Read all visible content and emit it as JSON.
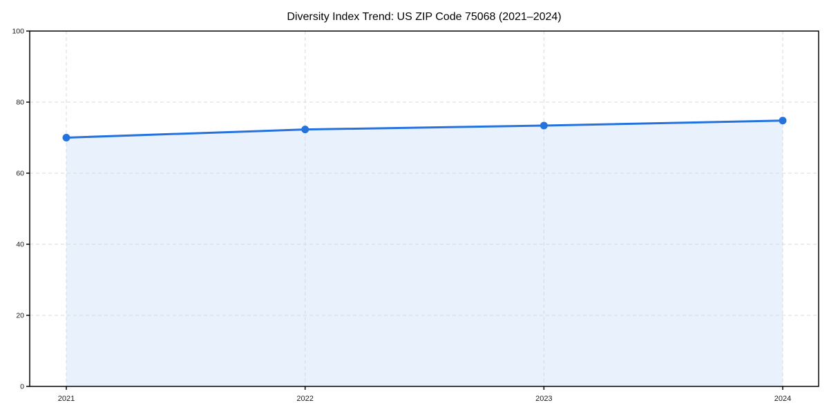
{
  "chart_data": {
    "type": "area",
    "title": "Diversity Index Trend: US ZIP Code 75068 (2021–2024)",
    "categories": [
      "2021",
      "2022",
      "2023",
      "2024"
    ],
    "series": [
      {
        "name": "Diversity Index",
        "values": [
          70.0,
          72.3,
          73.4,
          74.8
        ]
      }
    ],
    "xlabel": "",
    "ylabel": "",
    "ylim": [
      0,
      100
    ],
    "y_ticks": [
      0,
      20,
      40,
      60,
      80,
      100
    ],
    "grid": "dashed",
    "legend": "none",
    "colors": {
      "line": "#2372de",
      "marker": "#2372de",
      "area_fill": "rgba(35,114,222,0.10)",
      "grid": "#d9d9d9",
      "spine": "#000000",
      "tick_label": "#1a1a1a",
      "title": "#000000"
    }
  }
}
